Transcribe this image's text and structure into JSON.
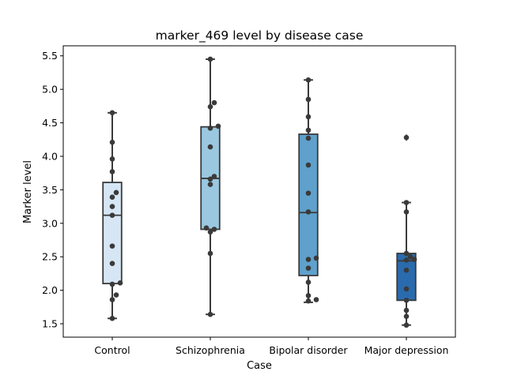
{
  "chart_data": {
    "type": "box",
    "title": "marker_469 level by disease case",
    "xlabel": "Case",
    "ylabel": "Marker level",
    "ylim": [
      1.3,
      5.65
    ],
    "yticks": [
      "1.5",
      "2.0",
      "2.5",
      "3.0",
      "3.5",
      "4.0",
      "4.5",
      "5.0",
      "5.5"
    ],
    "grid": false,
    "categories": [
      "Control",
      "Schizophrenia",
      "Bipolar disorder",
      "Major depression"
    ],
    "colors": [
      "#d6e6f4",
      "#9ac8e0",
      "#5fa1cc",
      "#2a6bae"
    ],
    "boxes": [
      {
        "q1": 2.1,
        "median": 3.12,
        "q3": 3.61,
        "whisker_low": 1.58,
        "whisker_high": 4.65,
        "outliers": []
      },
      {
        "q1": 2.91,
        "median": 3.67,
        "q3": 4.44,
        "whisker_low": 1.64,
        "whisker_high": 5.45,
        "outliers": []
      },
      {
        "q1": 2.22,
        "median": 3.16,
        "q3": 4.33,
        "whisker_low": 1.82,
        "whisker_high": 5.14,
        "outliers": []
      },
      {
        "q1": 1.85,
        "median": 2.44,
        "q3": 2.55,
        "whisker_low": 1.48,
        "whisker_high": 3.31,
        "outliers": [
          4.28
        ]
      }
    ],
    "points": [
      [
        4.65,
        4.21,
        3.96,
        3.77,
        3.46,
        3.39,
        3.25,
        3.12,
        2.66,
        2.4,
        2.11,
        2.09,
        1.93,
        1.86,
        1.58
      ],
      [
        5.45,
        4.8,
        4.74,
        4.45,
        4.42,
        4.14,
        3.7,
        3.66,
        3.58,
        2.93,
        2.91,
        2.87,
        2.55,
        1.64
      ],
      [
        5.14,
        4.85,
        4.59,
        4.39,
        4.27,
        3.87,
        3.45,
        3.17,
        2.48,
        2.46,
        2.33,
        2.12,
        1.92,
        1.86,
        1.84
      ],
      [
        4.28,
        3.31,
        3.17,
        2.55,
        2.5,
        2.46,
        2.45,
        2.3,
        2.02,
        1.85,
        1.7,
        1.61,
        1.48
      ]
    ]
  }
}
